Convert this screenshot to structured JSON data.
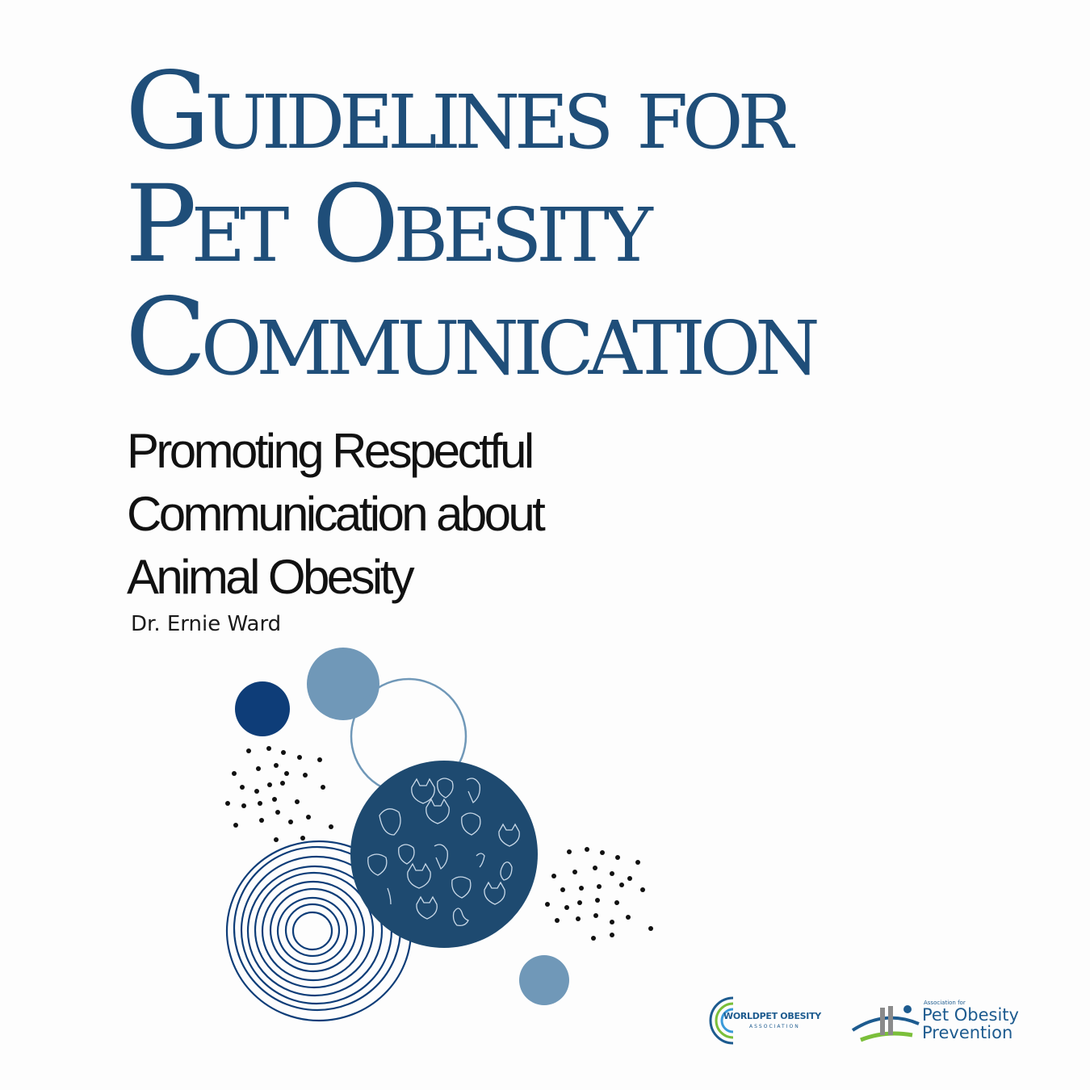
{
  "title": {
    "lines": [
      "Guidelines for",
      "Pet Obesity",
      "Communication"
    ]
  },
  "subtitle": {
    "lines": [
      "Promoting Respectful",
      "Communication about",
      "Animal Obesity"
    ]
  },
  "author": "Dr. Ernie Ward",
  "logos": {
    "wpoa": {
      "name": "WORLDPET OBESITY",
      "sub": "ASSOCIATION"
    },
    "apop": {
      "small": "Association for",
      "line1": "Pet Obesity",
      "line2": "Prevention"
    }
  },
  "colors": {
    "title": "#1f4e79",
    "dark_blue": "#0e3d78",
    "steel_blue": "#7098b8",
    "navy_circle": "#1e4a70",
    "logo_blue": "#1d5b8f",
    "logo_green": "#7bbf3a"
  }
}
